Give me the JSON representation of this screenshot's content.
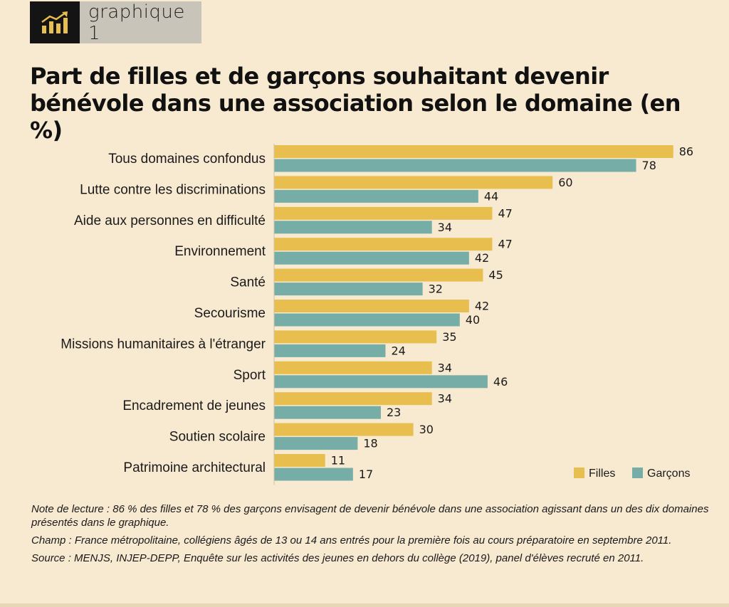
{
  "header": {
    "badge_label": "graphique 1",
    "badge_icon": "rising-bar-chart-icon",
    "title": "Part de filles et de garçons souhaitant devenir bénévole dans une association selon le domaine (en %)"
  },
  "colors": {
    "background": "#f8ead1",
    "filles": "#e8be4f",
    "garcons": "#77ada7",
    "badge_dark": "#141414",
    "badge_gold": "#e8be4f",
    "badge_grey": "#c9c4ba"
  },
  "chart_data": {
    "type": "bar",
    "orientation": "horizontal",
    "title": "Part de filles et de garçons souhaitant devenir bénévole dans une association selon le domaine (en %)",
    "categories": [
      "Tous domaines confondus",
      "Lutte contre les discriminations",
      "Aide aux personnes en difficulté",
      "Environnement",
      "Santé",
      "Secourisme",
      "Missions humanitaires à l'étranger",
      "Sport",
      "Encadrement de jeunes",
      "Soutien scolaire",
      "Patrimoine architectural"
    ],
    "series": [
      {
        "name": "Filles",
        "values": [
          86,
          60,
          47,
          47,
          45,
          42,
          35,
          34,
          34,
          30,
          11
        ]
      },
      {
        "name": "Garçons",
        "values": [
          78,
          44,
          34,
          42,
          32,
          40,
          24,
          46,
          23,
          18,
          17
        ]
      }
    ],
    "xlim": [
      0,
      90
    ],
    "data_labels": true,
    "grid": false,
    "legend": "bottom-right"
  },
  "notes": {
    "lecture": "Note de lecture : 86 % des filles et 78 % des garçons envisagent de devenir bénévole dans une association agissant dans un des dix domaines présentés dans le graphique.",
    "champ": "Champ : France métropolitaine, collégiens âgés de 13 ou 14 ans entrés pour la première fois au cours préparatoire en septembre 2011.",
    "source": "Source : MENJS, INJEP-DEPP, Enquête sur les activités des jeunes en dehors du collège (2019), panel d'élèves recruté en 2011."
  }
}
